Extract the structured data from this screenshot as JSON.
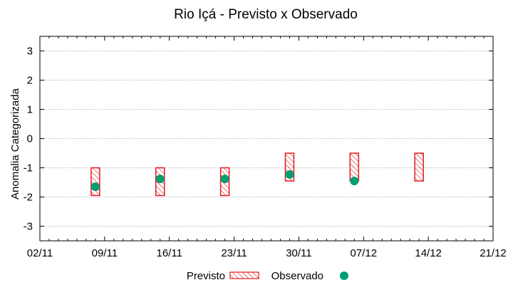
{
  "chart_data": {
    "type": "scatter",
    "title": "Rio Içá - Previsto x Observado",
    "ylabel": "Anomalia Categorizada",
    "xlabel": "",
    "ylim": [
      -3.5,
      3.5
    ],
    "xlim_days": [
      0,
      49
    ],
    "yticks": [
      3,
      2,
      1,
      0,
      -1,
      -2,
      -3
    ],
    "y_tick_labels": [
      "3",
      "2",
      "1",
      "0",
      "-1",
      "-2",
      "-3"
    ],
    "x_ticks": [
      {
        "label": "02/11",
        "day": 0
      },
      {
        "label": "09/11",
        "day": 7
      },
      {
        "label": "16/11",
        "day": 14
      },
      {
        "label": "23/11",
        "day": 21
      },
      {
        "label": "30/11",
        "day": 28
      },
      {
        "label": "07/12",
        "day": 35
      },
      {
        "label": "14/12",
        "day": 42
      },
      {
        "label": "21/12",
        "day": 49
      }
    ],
    "grid": true,
    "legend_position": "bottom-center",
    "colors": {
      "previsto": "#e31a1c",
      "observado": "#009e73",
      "grid": "#a0a0a0"
    },
    "series": [
      {
        "name": "Previsto",
        "kind": "range",
        "points": [
          {
            "day": 6.0,
            "low": -1.95,
            "high": -1.0
          },
          {
            "day": 13.0,
            "low": -1.95,
            "high": -1.0
          },
          {
            "day": 20.0,
            "low": -1.95,
            "high": -1.0
          },
          {
            "day": 27.0,
            "low": -1.45,
            "high": -0.5
          },
          {
            "day": 34.0,
            "low": -1.45,
            "high": -0.5
          },
          {
            "day": 41.0,
            "low": -1.45,
            "high": -0.5
          }
        ]
      },
      {
        "name": "Observado",
        "kind": "point",
        "points": [
          {
            "day": 6.0,
            "value": -1.65
          },
          {
            "day": 13.0,
            "value": -1.38
          },
          {
            "day": 20.0,
            "value": -1.38
          },
          {
            "day": 27.0,
            "value": -1.23
          },
          {
            "day": 34.0,
            "value": -1.45
          }
        ]
      }
    ]
  }
}
